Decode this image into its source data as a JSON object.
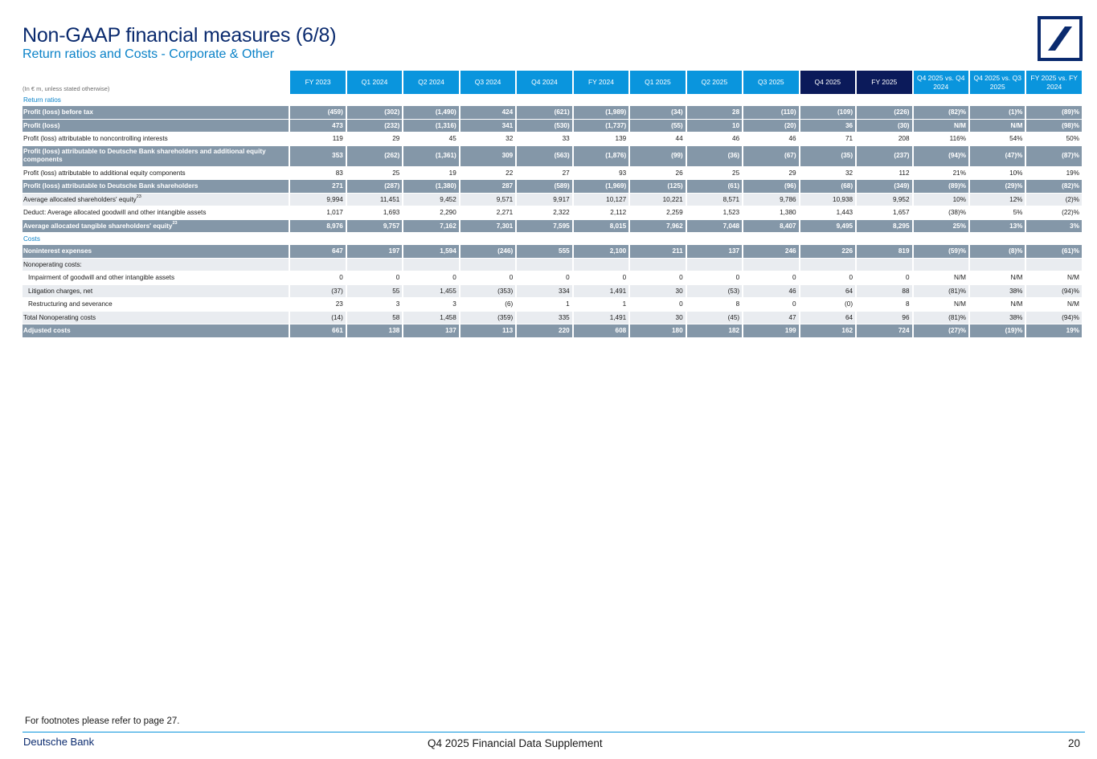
{
  "header": {
    "title": "Non-GAAP financial measures (6/8)",
    "subtitle": "Return ratios and Costs - Corporate & Other"
  },
  "logo": {
    "name": "deutsche-bank-logo",
    "color": "#0a2a6e"
  },
  "table": {
    "unit_note": "(In € m, unless stated otherwise)",
    "columns": [
      "FY 2023",
      "Q1 2024",
      "Q2 2024",
      "Q3 2024",
      "Q4 2024",
      "FY 2024",
      "Q1 2025",
      "Q2 2025",
      "Q3 2025",
      "Q4 2025",
      "FY 2025",
      "Q4 2025 vs. Q4 2024",
      "Q4 2025 vs. Q3 2025",
      "FY 2025 vs. FY 2024"
    ],
    "rows": [
      {
        "type": "section",
        "label": "Return ratios"
      },
      {
        "type": "bold",
        "label": "Profit (loss) before tax",
        "values": [
          "(459)",
          "(302)",
          "(1,490)",
          "424",
          "(621)",
          "(1,989)",
          "(34)",
          "28",
          "(110)",
          "(109)",
          "(226)",
          "(82)%",
          "(1)%",
          "(89)%"
        ]
      },
      {
        "type": "bold",
        "label": "Profit (loss)",
        "values": [
          "473",
          "(232)",
          "(1,316)",
          "341",
          "(530)",
          "(1,737)",
          "(55)",
          "10",
          "(20)",
          "36",
          "(30)",
          "N/M",
          "N/M",
          "(98)%"
        ]
      },
      {
        "type": "normal",
        "label": "Profit (loss) attributable to noncontrolling interests",
        "values": [
          "119",
          "29",
          "45",
          "32",
          "33",
          "139",
          "44",
          "46",
          "46",
          "71",
          "208",
          "116%",
          "54%",
          "50%"
        ]
      },
      {
        "type": "bold",
        "tall": true,
        "label": "Profit (loss) attributable to Deutsche Bank shareholders and additional equity components",
        "values": [
          "353",
          "(262)",
          "(1,361)",
          "309",
          "(563)",
          "(1,876)",
          "(99)",
          "(36)",
          "(67)",
          "(35)",
          "(237)",
          "(94)%",
          "(47)%",
          "(87)%"
        ]
      },
      {
        "type": "normal",
        "label": "Profit (loss) attributable to additional equity components",
        "values": [
          "83",
          "25",
          "19",
          "22",
          "27",
          "93",
          "26",
          "25",
          "29",
          "32",
          "112",
          "21%",
          "10%",
          "19%"
        ]
      },
      {
        "type": "bold",
        "label": "Profit (loss) attributable to Deutsche Bank shareholders",
        "values": [
          "271",
          "(287)",
          "(1,380)",
          "287",
          "(589)",
          "(1,969)",
          "(125)",
          "(61)",
          "(96)",
          "(68)",
          "(349)",
          "(89)%",
          "(29)%",
          "(82)%"
        ]
      },
      {
        "type": "normal",
        "alt": true,
        "label": "Average allocated shareholders' equity",
        "sup": "23",
        "values": [
          "9,994",
          "11,451",
          "9,452",
          "9,571",
          "9,917",
          "10,127",
          "10,221",
          "8,571",
          "9,786",
          "10,938",
          "9,952",
          "10%",
          "12%",
          "(2)%"
        ]
      },
      {
        "type": "normal",
        "label": "Deduct: Average allocated goodwill and other intangible assets",
        "values": [
          "1,017",
          "1,693",
          "2,290",
          "2,271",
          "2,322",
          "2,112",
          "2,259",
          "1,523",
          "1,380",
          "1,443",
          "1,657",
          "(38)%",
          "5%",
          "(22)%"
        ]
      },
      {
        "type": "bold",
        "label": "Average allocated tangible shareholders' equity",
        "sup": "23",
        "values": [
          "8,976",
          "9,757",
          "7,162",
          "7,301",
          "7,595",
          "8,015",
          "7,962",
          "7,048",
          "8,407",
          "9,495",
          "8,295",
          "25%",
          "13%",
          "3%"
        ]
      },
      {
        "type": "section",
        "label": "Costs"
      },
      {
        "type": "bold",
        "label": "Noninterest expenses",
        "values": [
          "647",
          "197",
          "1,594",
          "(246)",
          "555",
          "2,100",
          "211",
          "137",
          "246",
          "226",
          "819",
          "(59)%",
          "(8)%",
          "(61)%"
        ]
      },
      {
        "type": "blank",
        "label": "Nonoperating costs:",
        "values": [
          "",
          "",
          "",
          "",
          "",
          "",
          "",
          "",
          "",
          "",
          "",
          "",
          "",
          ""
        ]
      },
      {
        "type": "normal",
        "sub": true,
        "label": "Impairment of goodwill and other intangible assets",
        "values": [
          "0",
          "0",
          "0",
          "0",
          "0",
          "0",
          "0",
          "0",
          "0",
          "0",
          "0",
          "N/M",
          "N/M",
          "N/M"
        ]
      },
      {
        "type": "normal",
        "alt": true,
        "sub": true,
        "label": "Litigation charges, net",
        "values": [
          "(37)",
          "55",
          "1,455",
          "(353)",
          "334",
          "1,491",
          "30",
          "(53)",
          "46",
          "64",
          "88",
          "(81)%",
          "38%",
          "(94)%"
        ]
      },
      {
        "type": "normal",
        "sub": true,
        "label": "Restructuring and severance",
        "values": [
          "23",
          "3",
          "3",
          "(6)",
          "1",
          "1",
          "0",
          "8",
          "0",
          "(0)",
          "8",
          "N/M",
          "N/M",
          "N/M"
        ]
      },
      {
        "type": "normal",
        "alt": true,
        "label": "Total Nonoperating costs",
        "values": [
          "(14)",
          "58",
          "1,458",
          "(359)",
          "335",
          "1,491",
          "30",
          "(45)",
          "47",
          "64",
          "96",
          "(81)%",
          "38%",
          "(94)%"
        ]
      },
      {
        "type": "bold",
        "label": "Adjusted costs",
        "values": [
          "661",
          "138",
          "137",
          "113",
          "220",
          "608",
          "180",
          "182",
          "199",
          "162",
          "724",
          "(27)%",
          "(19)%",
          "19%"
        ]
      }
    ]
  },
  "footer": {
    "footnote": "For footnotes please refer to page 27.",
    "brand": "Deutsche Bank",
    "document": "Q4 2025 Financial Data Supplement",
    "page": "20"
  }
}
